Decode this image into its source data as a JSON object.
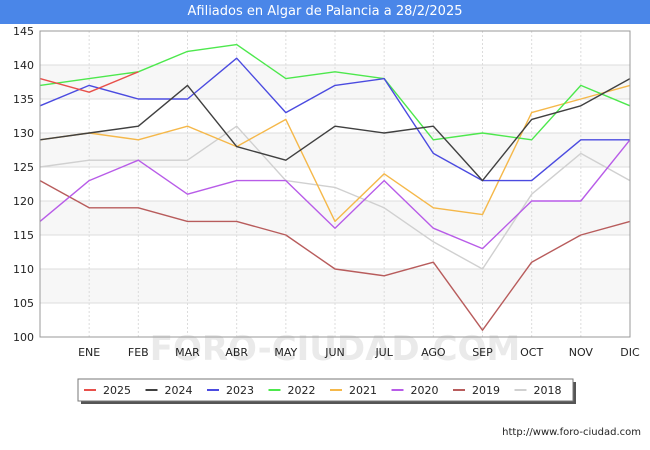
{
  "title": "Afiliados en Algar de Palancia a 28/2/2025",
  "footer": "http://www.foro-ciudad.com",
  "watermark": "FORO-CIUDAD.COM",
  "chart_data": {
    "type": "line",
    "x": [
      "",
      "ENE",
      "FEB",
      "MAR",
      "ABR",
      "MAY",
      "JUN",
      "JUL",
      "AGO",
      "SEP",
      "OCT",
      "NOV",
      "DIC"
    ],
    "ylim": [
      100,
      145
    ],
    "yticks": [
      100,
      105,
      110,
      115,
      120,
      125,
      130,
      135,
      140,
      145
    ],
    "grid": true,
    "legend_position": "bottom",
    "series": [
      {
        "name": "2025",
        "color": "#e8504a",
        "values": [
          138,
          136,
          139,
          null,
          null,
          null,
          null,
          null,
          null,
          null,
          null,
          null,
          null
        ]
      },
      {
        "name": "2024",
        "color": "#404040",
        "values": [
          129,
          130,
          131,
          137,
          128,
          126,
          131,
          130,
          131,
          123,
          132,
          134,
          138
        ]
      },
      {
        "name": "2023",
        "color": "#4b4be0",
        "values": [
          134,
          137,
          135,
          135,
          141,
          133,
          137,
          138,
          127,
          123,
          123,
          129,
          129
        ]
      },
      {
        "name": "2022",
        "color": "#4de84d",
        "values": [
          137,
          138,
          139,
          142,
          143,
          138,
          139,
          138,
          129,
          130,
          129,
          137,
          134
        ]
      },
      {
        "name": "2021",
        "color": "#f5b84a",
        "values": [
          129,
          130,
          129,
          131,
          128,
          132,
          117,
          124,
          119,
          118,
          133,
          135,
          137
        ]
      },
      {
        "name": "2020",
        "color": "#b85ce8",
        "values": [
          117,
          123,
          126,
          121,
          123,
          123,
          116,
          123,
          116,
          113,
          120,
          120,
          129
        ]
      },
      {
        "name": "2019",
        "color": "#b85c5c",
        "values": [
          123,
          119,
          119,
          117,
          117,
          115,
          110,
          109,
          111,
          101,
          111,
          115,
          117
        ]
      },
      {
        "name": "2018",
        "color": "#d0d0d0",
        "values": [
          125,
          126,
          126,
          126,
          131,
          123,
          122,
          119,
          114,
          110,
          121,
          127,
          123
        ]
      }
    ]
  }
}
